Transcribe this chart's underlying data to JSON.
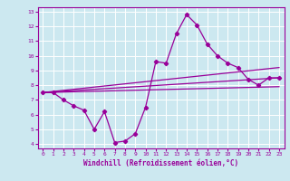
{
  "xlabel": "Windchill (Refroidissement éolien,°C)",
  "bg_color": "#cce8f0",
  "grid_color": "#ffffff",
  "line_color": "#990099",
  "xlim": [
    -0.5,
    23.5
  ],
  "ylim": [
    3.7,
    13.3
  ],
  "xticks": [
    0,
    1,
    2,
    3,
    4,
    5,
    6,
    7,
    8,
    9,
    10,
    11,
    12,
    13,
    14,
    15,
    16,
    17,
    18,
    19,
    20,
    21,
    22,
    23
  ],
  "yticks": [
    4,
    5,
    6,
    7,
    8,
    9,
    10,
    11,
    12,
    13
  ],
  "series1_x": [
    0,
    1,
    2,
    3,
    4,
    5,
    6,
    7,
    8,
    9,
    10,
    11,
    12,
    13,
    14,
    15,
    16,
    17,
    18,
    19,
    20,
    21,
    22,
    23
  ],
  "series1_y": [
    7.5,
    7.5,
    7.0,
    6.6,
    6.3,
    5.0,
    6.2,
    4.1,
    4.2,
    4.7,
    6.5,
    9.6,
    9.5,
    11.5,
    12.8,
    12.1,
    10.8,
    10.0,
    9.5,
    9.2,
    8.4,
    8.0,
    8.5,
    8.5
  ],
  "series2_x": [
    0,
    23
  ],
  "series2_y": [
    7.5,
    8.5
  ],
  "series3_x": [
    0,
    23
  ],
  "series3_y": [
    7.5,
    9.2
  ],
  "series4_x": [
    0,
    23
  ],
  "series4_y": [
    7.5,
    7.9
  ]
}
